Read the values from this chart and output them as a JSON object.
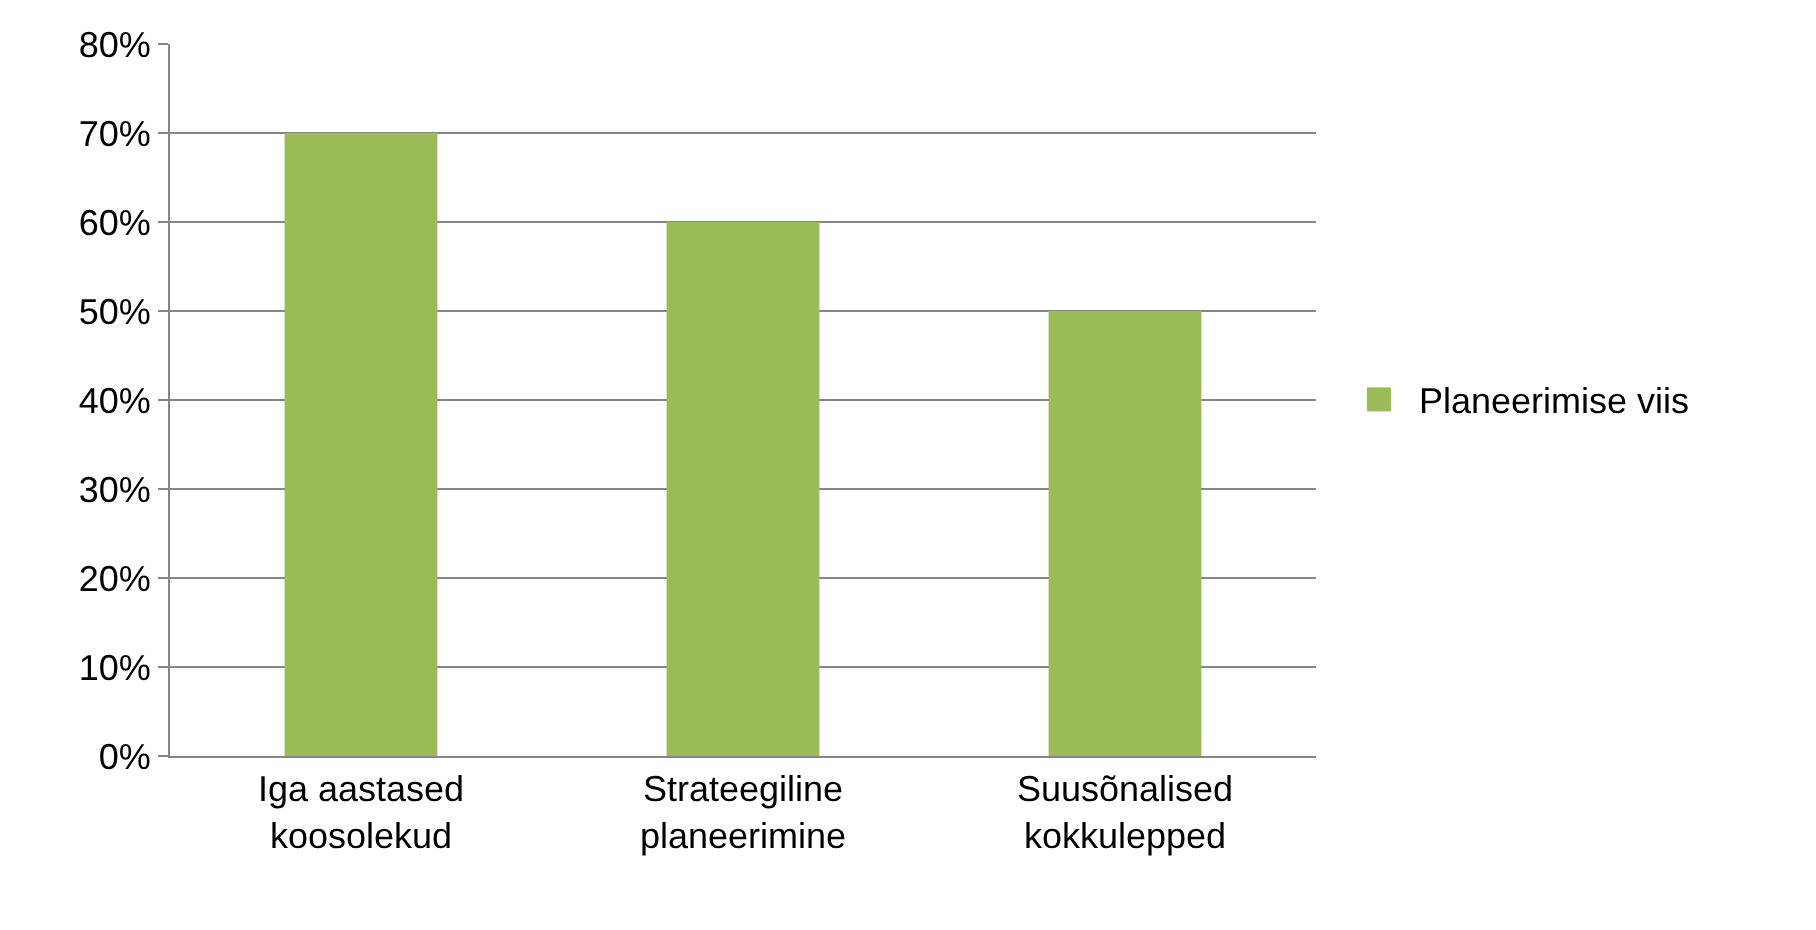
{
  "chart_data": {
    "type": "bar",
    "categories": [
      "Iga aastased koosolekud",
      "Strateegiline planeerimine",
      "Suusõnalised kokkulepped"
    ],
    "series": [
      {
        "name": "Planeerimise viis",
        "color": "#9bbb59",
        "values": [
          70,
          60,
          50
        ]
      }
    ],
    "ylim": [
      0,
      80
    ],
    "yticks": [
      {
        "value": 0,
        "label": "0%"
      },
      {
        "value": 10,
        "label": "10%"
      },
      {
        "value": 20,
        "label": "20%"
      },
      {
        "value": 30,
        "label": "30%"
      },
      {
        "value": 40,
        "label": "40%"
      },
      {
        "value": 50,
        "label": "50%"
      },
      {
        "value": 60,
        "label": "60%"
      },
      {
        "value": 70,
        "label": "70%"
      },
      {
        "value": 80,
        "label": "80%"
      }
    ],
    "grid": "y",
    "legend": "right"
  }
}
